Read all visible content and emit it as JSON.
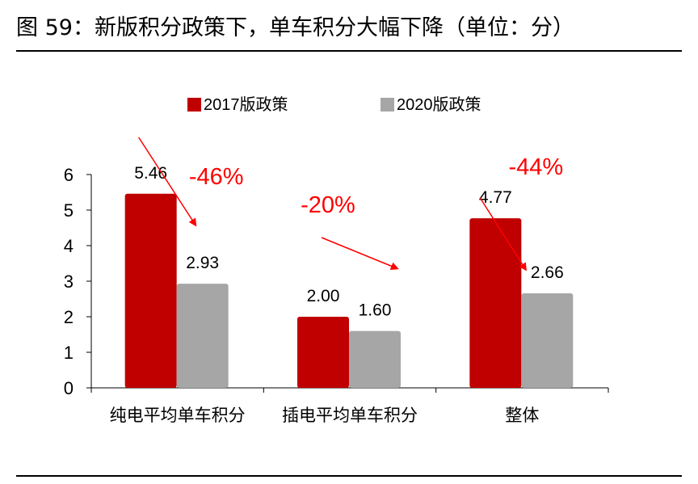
{
  "figure_title": "图 59：新版积分政策下，单车积分大幅下降（单位：分）",
  "chart_data": {
    "type": "bar",
    "title": "",
    "xlabel": "",
    "ylabel": "",
    "categories": [
      "纯电平均单车积分",
      "插电平均单车积分",
      "整体"
    ],
    "series": [
      {
        "name": "2017版政策",
        "values": [
          5.46,
          2.0,
          4.77
        ],
        "labels": [
          "5.46",
          "2.00",
          "4.77"
        ],
        "color": "#c00000"
      },
      {
        "name": "2020版政策",
        "values": [
          2.93,
          1.6,
          2.66
        ],
        "labels": [
          "2.93",
          "1.60",
          "2.66"
        ],
        "color": "#a6a6a6"
      }
    ],
    "ylim": [
      0,
      6
    ],
    "yticks": [
      0,
      1,
      2,
      3,
      4,
      5,
      6
    ],
    "grid": false,
    "legend_position": "top",
    "annotations": [
      {
        "category": 0,
        "text": "-46%"
      },
      {
        "category": 1,
        "text": "-20%"
      },
      {
        "category": 2,
        "text": "-44%"
      }
    ],
    "annotation_color": "#ff0000"
  }
}
